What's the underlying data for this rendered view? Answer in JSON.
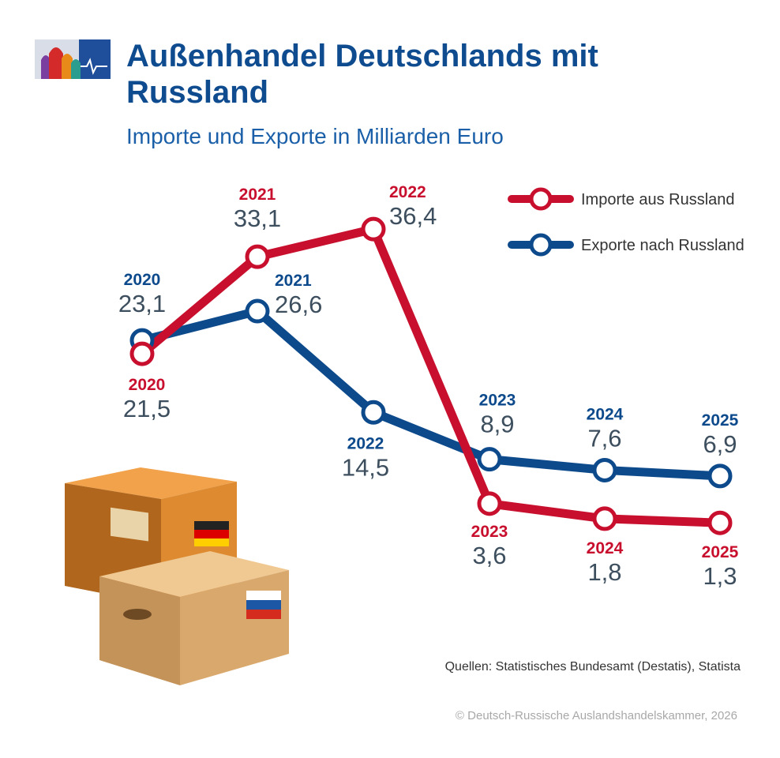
{
  "title": "Außenhandel Deutschlands mit Russland",
  "subtitle": "Importe und Exporte in Milliarden Euro",
  "source": "Quellen: Statistisches Bundesamt (Destatis), Statista",
  "copyright": "© Deutsch-Russische Auslandshandelskammer, 2026",
  "colors": {
    "imports": "#c8102e",
    "exports": "#0d4a8c",
    "title": "#0f4c8f"
  },
  "chart_data": {
    "type": "line",
    "title": "Außenhandel Deutschlands mit Russland",
    "subtitle": "Importe und Exporte in Milliarden Euro",
    "x": [
      "2020",
      "2021",
      "2022",
      "2023",
      "2024",
      "2025"
    ],
    "series": [
      {
        "name": "Importe aus Russland",
        "color": "#c8102e",
        "values": [
          21.5,
          33.1,
          36.4,
          3.6,
          1.8,
          1.3
        ],
        "labels": [
          "21,5",
          "33,1",
          "36,4",
          "3,6",
          "1,8",
          "1,3"
        ]
      },
      {
        "name": "Exporte nach Russland",
        "color": "#0d4a8c",
        "values": [
          23.1,
          26.6,
          14.5,
          8.9,
          7.6,
          6.9
        ],
        "labels": [
          "23,1",
          "26,6",
          "14,5",
          "8,9",
          "7,6",
          "6,9"
        ]
      }
    ],
    "legend": "top-right",
    "grid": false,
    "ylim": [
      0,
      40
    ]
  }
}
